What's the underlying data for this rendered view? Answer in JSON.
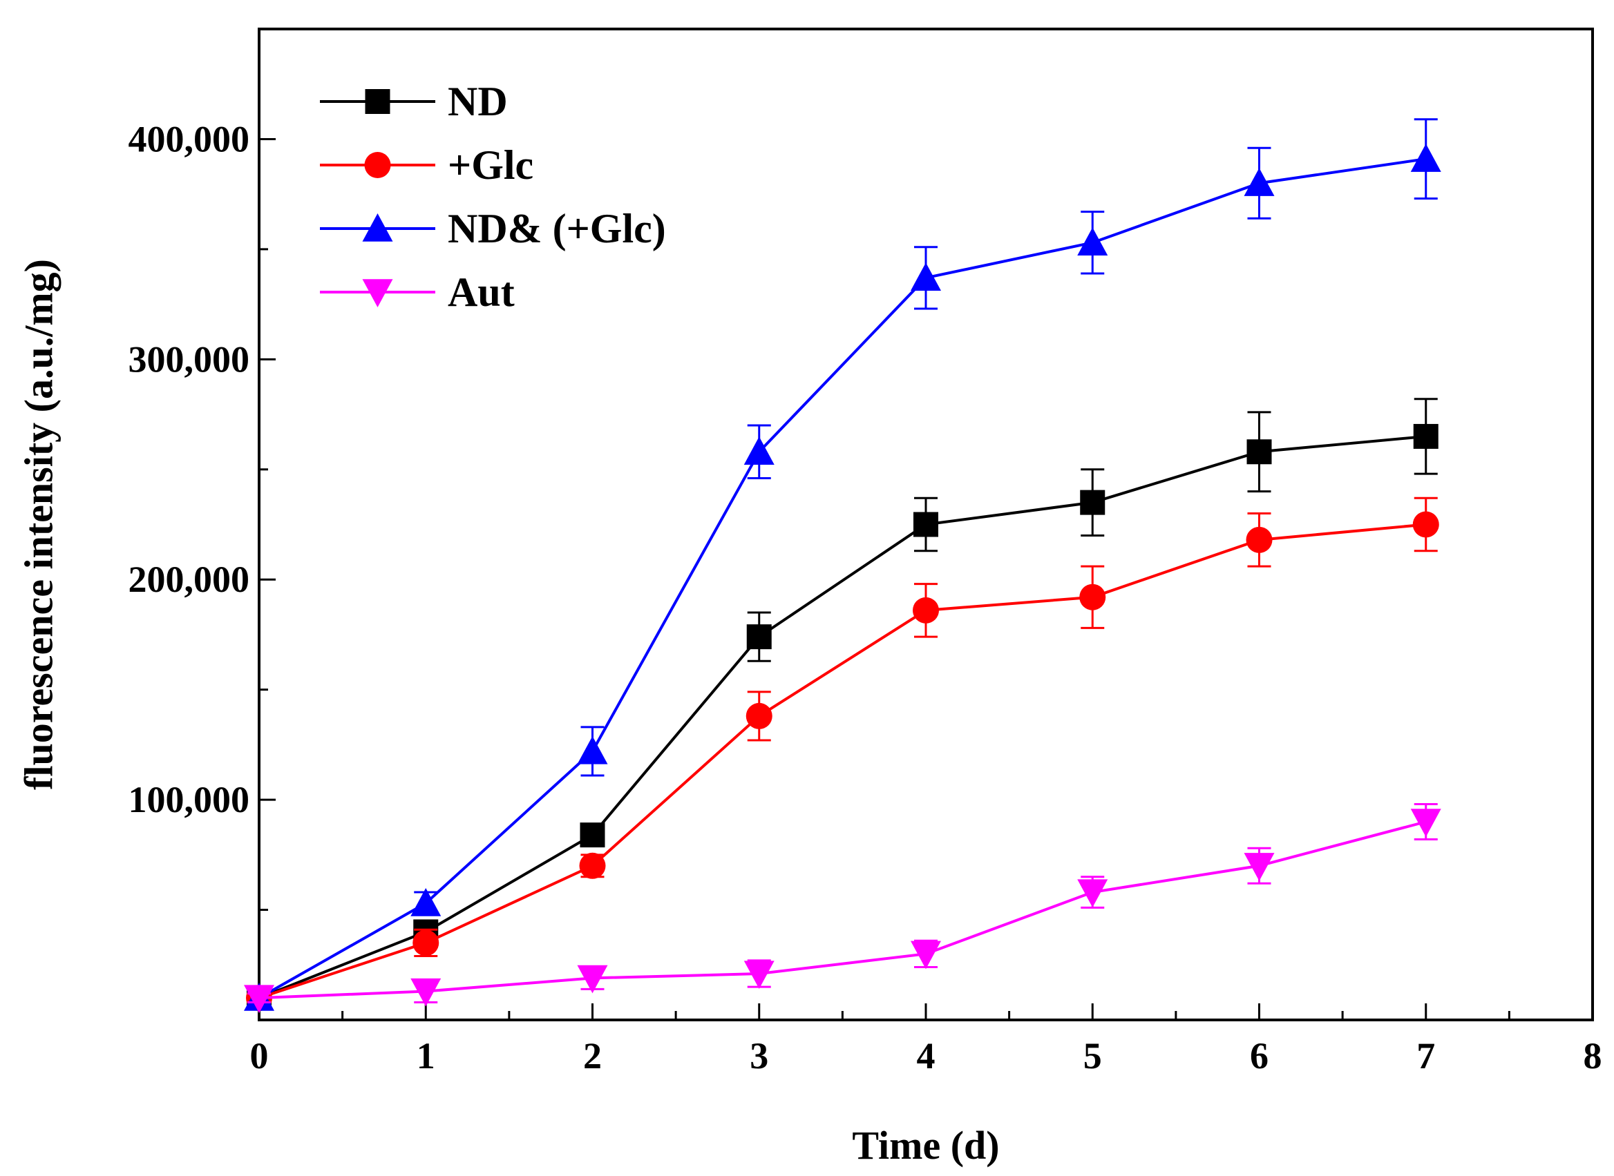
{
  "chart_data": {
    "type": "line",
    "title": "",
    "xlabel": "Time (d)",
    "ylabel": "fluorescence intensity (a.u./mg)",
    "xlim": [
      0,
      8
    ],
    "ylim": [
      0,
      450000
    ],
    "xticks": [
      0,
      1,
      2,
      3,
      4,
      5,
      6,
      7,
      8
    ],
    "xtick_labels": [
      "0",
      "1",
      "2",
      "3",
      "4",
      "5",
      "6",
      "7",
      "8"
    ],
    "yticks": [
      100000,
      200000,
      300000,
      400000
    ],
    "ytick_labels": [
      "100,000",
      "200,000",
      "300,000",
      "400,000"
    ],
    "grid": false,
    "legend_position": "top-left",
    "x": [
      0,
      1,
      2,
      3,
      4,
      5,
      6,
      7
    ],
    "series": [
      {
        "name": "ND",
        "color": "#000000",
        "marker": "square",
        "values": [
          10000,
          40000,
          84000,
          174000,
          225000,
          235000,
          258000,
          265000
        ],
        "errors": [
          3000,
          5000,
          5000,
          11000,
          12000,
          15000,
          18000,
          17000
        ]
      },
      {
        "name": "+Glc",
        "color": "#ff0000",
        "marker": "circle",
        "values": [
          10000,
          35000,
          70000,
          138000,
          186000,
          192000,
          218000,
          225000
        ],
        "errors": [
          3000,
          6000,
          5000,
          11000,
          12000,
          14000,
          12000,
          12000
        ]
      },
      {
        "name": "ND& (+Glc)",
        "color": "#0000ff",
        "marker": "triangle-up",
        "values": [
          10000,
          53000,
          122000,
          258000,
          337000,
          353000,
          380000,
          391000
        ],
        "errors": [
          3000,
          5000,
          11000,
          12000,
          14000,
          14000,
          16000,
          18000
        ]
      },
      {
        "name": "Aut",
        "color": "#ff00ff",
        "marker": "triangle-down",
        "values": [
          10000,
          13000,
          19000,
          21000,
          30000,
          58000,
          70000,
          90000
        ],
        "errors": [
          2000,
          5000,
          5000,
          6000,
          6000,
          7000,
          8000,
          8000
        ]
      }
    ]
  }
}
